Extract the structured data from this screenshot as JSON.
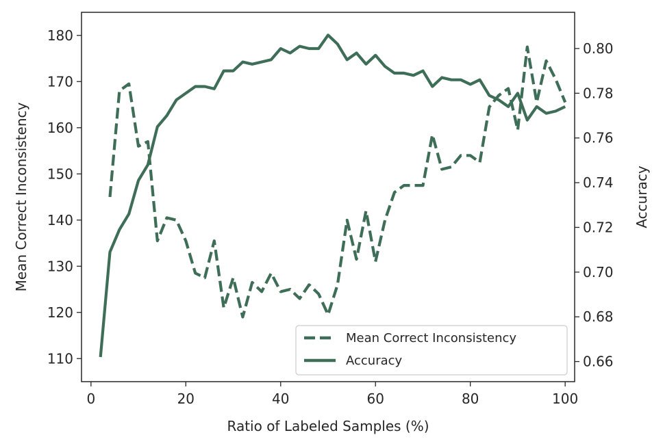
{
  "chart_data": {
    "type": "line",
    "title": "",
    "xlabel": "Ratio of Labeled Samples (%)",
    "ylabel_left": "Mean Correct Inconsistency",
    "ylabel_right": "Accuracy",
    "xlim": [
      -2,
      102
    ],
    "ylim_left": [
      105,
      185
    ],
    "ylim_right": [
      0.651,
      0.8162
    ],
    "xticks": [
      0,
      20,
      40,
      60,
      80,
      100
    ],
    "yticks_left": [
      110,
      120,
      130,
      140,
      150,
      160,
      170,
      180
    ],
    "yticks_right": [
      0.66,
      0.68,
      0.7,
      0.72,
      0.74,
      0.76,
      0.78,
      0.8
    ],
    "color": "#3f6e58",
    "legend_position": "lower-right",
    "series": [
      {
        "name": "Mean Correct Inconsistency",
        "axis": "left",
        "style": "dashed",
        "x": [
          4,
          6,
          8,
          10,
          12,
          14,
          16,
          18,
          20,
          22,
          24,
          26,
          28,
          30,
          32,
          34,
          36,
          38,
          40,
          42,
          44,
          46,
          48,
          50,
          52,
          54,
          56,
          58,
          60,
          62,
          64,
          66,
          68,
          70,
          72,
          74,
          76,
          78,
          80,
          82,
          84,
          86,
          88,
          90,
          92,
          94,
          96,
          98,
          100
        ],
        "values": [
          145,
          168,
          169.5,
          156,
          157,
          135.5,
          140.5,
          140,
          135.5,
          128.5,
          127.5,
          135.5,
          121,
          127.5,
          119,
          126.5,
          124.5,
          128.5,
          124.5,
          125,
          123,
          126,
          124,
          119.5,
          126,
          140,
          131.5,
          142,
          131,
          140,
          146,
          147.5,
          147.5,
          147.5,
          158.5,
          151,
          151.5,
          154,
          154,
          152.5,
          164.5,
          167,
          168.5,
          159.5,
          177.5,
          165.5,
          174.5,
          170.5,
          165.5
        ]
      },
      {
        "name": "Accuracy",
        "axis": "right",
        "style": "solid",
        "x": [
          2,
          4,
          6,
          8,
          10,
          12,
          14,
          16,
          18,
          20,
          22,
          24,
          26,
          28,
          30,
          32,
          34,
          36,
          38,
          40,
          42,
          44,
          46,
          48,
          50,
          52,
          54,
          56,
          58,
          60,
          62,
          64,
          66,
          68,
          70,
          72,
          74,
          76,
          78,
          80,
          82,
          84,
          86,
          88,
          90,
          92,
          94,
          96,
          98,
          100
        ],
        "values": [
          0.662,
          0.709,
          0.719,
          0.726,
          0.741,
          0.748,
          0.765,
          0.77,
          0.777,
          0.78,
          0.783,
          0.783,
          0.782,
          0.79,
          0.79,
          0.794,
          0.793,
          0.794,
          0.795,
          0.8,
          0.798,
          0.801,
          0.8,
          0.8,
          0.806,
          0.802,
          0.795,
          0.798,
          0.793,
          0.797,
          0.792,
          0.789,
          0.789,
          0.788,
          0.79,
          0.783,
          0.787,
          0.786,
          0.786,
          0.784,
          0.786,
          0.779,
          0.777,
          0.774,
          0.78,
          0.768,
          0.774,
          0.771,
          0.772,
          0.774
        ]
      }
    ]
  }
}
